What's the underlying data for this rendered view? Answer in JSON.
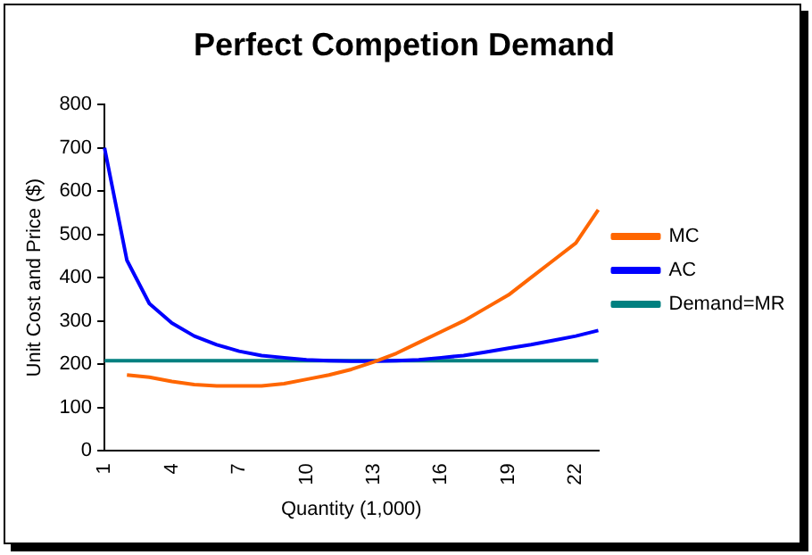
{
  "chart_data": {
    "type": "line",
    "title": "Perfect Competion Demand",
    "xlabel": "Quantity (1,000)",
    "ylabel": "Unit Cost and Price ($)",
    "categories": [
      "1",
      null,
      null,
      "4",
      null,
      null,
      "7",
      null,
      null,
      "10",
      null,
      null,
      "13",
      null,
      null,
      "16",
      null,
      null,
      "19",
      null,
      null,
      "22",
      null
    ],
    "ylim": [
      0,
      800
    ],
    "yticks": [
      0,
      100,
      200,
      300,
      400,
      500,
      600,
      700,
      800
    ],
    "grid": false,
    "legend": "right",
    "marker": "none",
    "series": [
      {
        "name": "MC",
        "color": "#ff6600",
        "values": [
          null,
          175,
          170,
          160,
          153,
          150,
          150,
          150,
          155,
          165,
          175,
          188,
          205,
          225,
          250,
          275,
          300,
          330,
          360,
          400,
          440,
          480,
          557
        ]
      },
      {
        "name": "AC",
        "color": "#0000ff",
        "values": [
          700,
          440,
          340,
          295,
          265,
          245,
          230,
          220,
          215,
          210,
          208,
          207,
          207,
          208,
          210,
          215,
          220,
          228,
          237,
          245,
          255,
          265,
          278
        ]
      },
      {
        "name": "Demand=MR",
        "color": "#008080",
        "values": [
          208,
          208,
          208,
          208,
          208,
          208,
          208,
          208,
          208,
          208,
          208,
          208,
          208,
          208,
          208,
          208,
          208,
          208,
          208,
          208,
          208,
          208,
          208
        ]
      }
    ]
  }
}
